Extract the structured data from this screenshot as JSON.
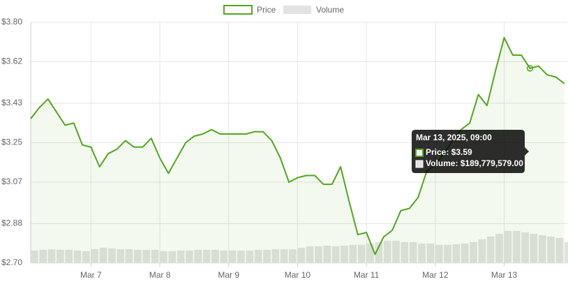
{
  "chart_data": {
    "type": "line",
    "x": [
      "2025-03-06T03:00",
      "2025-03-06T06:00",
      "2025-03-06T09:00",
      "2025-03-06T12:00",
      "2025-03-06T15:00",
      "2025-03-06T18:00",
      "2025-03-06T21:00",
      "2025-03-07T00:00",
      "2025-03-07T03:00",
      "2025-03-07T06:00",
      "2025-03-07T09:00",
      "2025-03-07T12:00",
      "2025-03-07T15:00",
      "2025-03-07T18:00",
      "2025-03-07T21:00",
      "2025-03-08T00:00",
      "2025-03-08T03:00",
      "2025-03-08T06:00",
      "2025-03-08T09:00",
      "2025-03-08T12:00",
      "2025-03-08T15:00",
      "2025-03-08T18:00",
      "2025-03-08T21:00",
      "2025-03-09T00:00",
      "2025-03-09T03:00",
      "2025-03-09T06:00",
      "2025-03-09T09:00",
      "2025-03-09T12:00",
      "2025-03-09T15:00",
      "2025-03-09T18:00",
      "2025-03-09T21:00",
      "2025-03-10T00:00",
      "2025-03-10T03:00",
      "2025-03-10T06:00",
      "2025-03-10T09:00",
      "2025-03-10T12:00",
      "2025-03-10T15:00",
      "2025-03-10T18:00",
      "2025-03-10T21:00",
      "2025-03-11T00:00",
      "2025-03-11T03:00",
      "2025-03-11T06:00",
      "2025-03-11T09:00",
      "2025-03-11T12:00",
      "2025-03-11T15:00",
      "2025-03-11T18:00",
      "2025-03-11T21:00",
      "2025-03-12T00:00",
      "2025-03-12T03:00",
      "2025-03-12T06:00",
      "2025-03-12T09:00",
      "2025-03-12T12:00",
      "2025-03-12T15:00",
      "2025-03-12T18:00",
      "2025-03-12T21:00",
      "2025-03-13T00:00",
      "2025-03-13T03:00",
      "2025-03-13T06:00",
      "2025-03-13T09:00",
      "2025-03-13T12:00",
      "2025-03-13T15:00",
      "2025-03-13T18:00",
      "2025-03-13T21:00"
    ],
    "series": [
      {
        "name": "Price",
        "color": "#52a620",
        "values": [
          3.36,
          3.41,
          3.45,
          3.39,
          3.33,
          3.34,
          3.24,
          3.23,
          3.14,
          3.2,
          3.22,
          3.26,
          3.23,
          3.23,
          3.27,
          3.18,
          3.11,
          3.18,
          3.25,
          3.28,
          3.29,
          3.31,
          3.29,
          3.29,
          3.29,
          3.29,
          3.3,
          3.3,
          3.26,
          3.18,
          3.07,
          3.09,
          3.1,
          3.1,
          3.06,
          3.06,
          3.14,
          2.98,
          2.83,
          2.84,
          2.74,
          2.82,
          2.85,
          2.94,
          2.95,
          3.0,
          3.12,
          3.15,
          3.2,
          3.26,
          3.31,
          3.34,
          3.47,
          3.42,
          3.58,
          3.73,
          3.65,
          3.65,
          3.59,
          3.6,
          3.56,
          3.55,
          3.52
        ]
      },
      {
        "name": "Volume",
        "color": "#e2e2e2",
        "axis": "y2",
        "values": [
          81000000,
          86000000,
          90000000,
          86000000,
          86000000,
          81000000,
          77000000,
          90000000,
          99000000,
          95000000,
          90000000,
          90000000,
          86000000,
          86000000,
          86000000,
          77000000,
          77000000,
          81000000,
          81000000,
          86000000,
          86000000,
          86000000,
          81000000,
          81000000,
          81000000,
          81000000,
          86000000,
          86000000,
          90000000,
          90000000,
          90000000,
          99000000,
          108000000,
          108000000,
          113000000,
          108000000,
          113000000,
          118000000,
          118000000,
          127000000,
          136000000,
          145000000,
          145000000,
          136000000,
          136000000,
          127000000,
          127000000,
          118000000,
          118000000,
          122000000,
          127000000,
          136000000,
          154000000,
          172000000,
          190000000,
          208000000,
          208000000,
          199000000,
          189779579,
          181000000,
          172000000,
          163000000,
          136000000
        ]
      }
    ],
    "xlim": [
      "2025-03-06T03:00",
      "2025-03-13T22:00"
    ],
    "xticks": [
      {
        "value": "2025-03-07T00:00",
        "label": "Mar 7"
      },
      {
        "value": "2025-03-08T00:00",
        "label": "Mar 8"
      },
      {
        "value": "2025-03-09T00:00",
        "label": "Mar 9"
      },
      {
        "value": "2025-03-10T00:00",
        "label": "Mar 10"
      },
      {
        "value": "2025-03-11T00:00",
        "label": "Mar 11"
      },
      {
        "value": "2025-03-12T00:00",
        "label": "Mar 12"
      },
      {
        "value": "2025-03-13T00:00",
        "label": "Mar 13"
      }
    ],
    "ylim": [
      2.7,
      3.8
    ],
    "yticks": [
      {
        "value": 3.8,
        "label": "$3.80"
      },
      {
        "value": 3.62,
        "label": "$3.62"
      },
      {
        "value": 3.43,
        "label": "$3.43"
      },
      {
        "value": 3.25,
        "label": "$3.25"
      },
      {
        "value": 3.07,
        "label": "$3.07"
      },
      {
        "value": 2.88,
        "label": "$2.88"
      },
      {
        "value": 2.7,
        "label": "$2.70"
      }
    ],
    "y2lim": [
      0,
      1560000000
    ],
    "grid": true,
    "legend": "top",
    "tooltip": {
      "index": 58,
      "title": "Mar 13, 2025, 09:00",
      "lines": [
        "Price: $3.59",
        "Volume: $189,779,579.00"
      ]
    }
  }
}
